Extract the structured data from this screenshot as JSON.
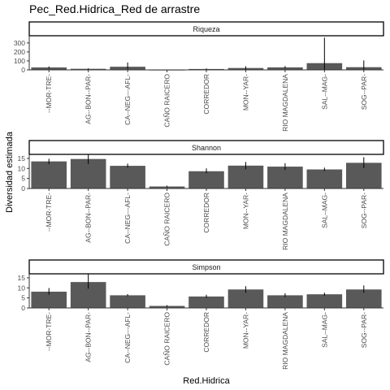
{
  "chart_data": {
    "type": "bar",
    "title": "Pec_Red.Hidrica_Red de arrastre",
    "xlabel": "Red.Hidrica",
    "ylabel": "Diversidad estimada",
    "categories": [
      "--MOR-TRE-",
      "AG--BON--PAR-",
      "CA--NEG---AFL-",
      "CAÑO RAICERO",
      "CORREDOR",
      "MON--YAR-",
      "RIO MAGDALENA",
      "SAL--MAG-",
      "SOG--PAR-"
    ],
    "bar_color": "#595959",
    "grid": false,
    "panels": [
      {
        "strip": "Riqueza",
        "ylim": [
          0,
          380
        ],
        "yticks": [
          0,
          100,
          200,
          300
        ],
        "values": [
          27,
          12,
          35,
          1,
          10,
          21,
          28,
          75,
          30
        ],
        "errors": [
          [
            16,
            38
          ],
          [
            6,
            17
          ],
          [
            10,
            82
          ],
          [
            0,
            2
          ],
          [
            3,
            16
          ],
          [
            5,
            40
          ],
          [
            15,
            42
          ],
          [
            0,
            360
          ],
          [
            0,
            105
          ]
        ]
      },
      {
        "strip": "Shannon",
        "ylim": [
          0,
          17
        ],
        "yticks": [
          0,
          5,
          10,
          15
        ],
        "values": [
          13.5,
          14.7,
          11.3,
          1.0,
          8.6,
          11.4,
          10.9,
          9.5,
          12.8
        ],
        "errors": [
          [
            12.2,
            14.8
          ],
          [
            12.2,
            18.0
          ],
          [
            10.4,
            12.4
          ],
          [
            0.6,
            1.4
          ],
          [
            7.6,
            10.0
          ],
          [
            9.6,
            13.2
          ],
          [
            9.2,
            12.6
          ],
          [
            8.6,
            10.4
          ],
          [
            10.2,
            15.6
          ]
        ]
      },
      {
        "strip": "Simpson",
        "ylim": [
          0,
          17
        ],
        "yticks": [
          0,
          5,
          10,
          15
        ],
        "values": [
          8.1,
          12.9,
          6.3,
          1.0,
          5.7,
          9.2,
          6.3,
          6.8,
          9.2
        ],
        "errors": [
          [
            6.6,
            9.9
          ],
          [
            9.6,
            17.0
          ],
          [
            5.8,
            6.9
          ],
          [
            0.6,
            1.4
          ],
          [
            5.0,
            6.6
          ],
          [
            7.6,
            10.8
          ],
          [
            5.4,
            7.3
          ],
          [
            6.0,
            7.6
          ],
          [
            7.6,
            11.2
          ]
        ]
      }
    ]
  }
}
